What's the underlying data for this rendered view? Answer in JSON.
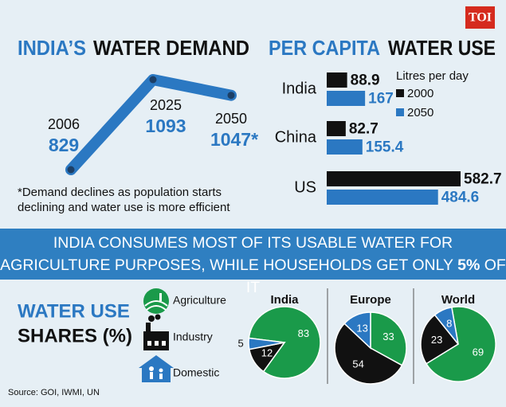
{
  "logo": "TOI",
  "chart_data": [
    {
      "type": "line",
      "title": [
        "INDIA’S",
        "WATER DEMAND"
      ],
      "categories": [
        "2006",
        "2025",
        "2050"
      ],
      "values": [
        829,
        1093,
        1047
      ],
      "value_labels": [
        "829",
        "1093",
        "1047*"
      ],
      "color": "#2b78c2",
      "note": "*Demand declines as population starts declining and water use is more efficient"
    },
    {
      "type": "bar",
      "orientation": "horizontal",
      "title": [
        "PER CAPITA",
        "WATER USE"
      ],
      "categories": [
        "India",
        "China",
        "US"
      ],
      "legend_title": "Litres per day",
      "series": [
        {
          "name": "2000",
          "color": "#111111",
          "values": [
            88.9,
            82.7,
            582.7
          ]
        },
        {
          "name": "2050",
          "color": "#2b78c2",
          "values": [
            167,
            155.4,
            484.6
          ]
        }
      ]
    },
    {
      "type": "pie",
      "title": [
        "WATER USE",
        "SHARES (%)"
      ],
      "categories": [
        "Agriculture",
        "Industry",
        "Domestic"
      ],
      "colors": [
        "#1a9a4a",
        "#111111",
        "#2b78c2"
      ],
      "pies": [
        {
          "title": "India",
          "values": [
            83,
            12,
            5
          ]
        },
        {
          "title": "Europe",
          "values": [
            33,
            54,
            13
          ]
        },
        {
          "title": "World",
          "values": [
            69,
            23,
            8
          ]
        }
      ]
    }
  ],
  "banner": [
    "INDIA CONSUMES MOST OF ITS USABLE WATER FOR",
    "AGRICULTURE PURPOSES, WHILE HOUSEHOLDS GET ONLY",
    "5%",
    "OF IT"
  ],
  "source": "Source: GOI, IWMI, UN"
}
